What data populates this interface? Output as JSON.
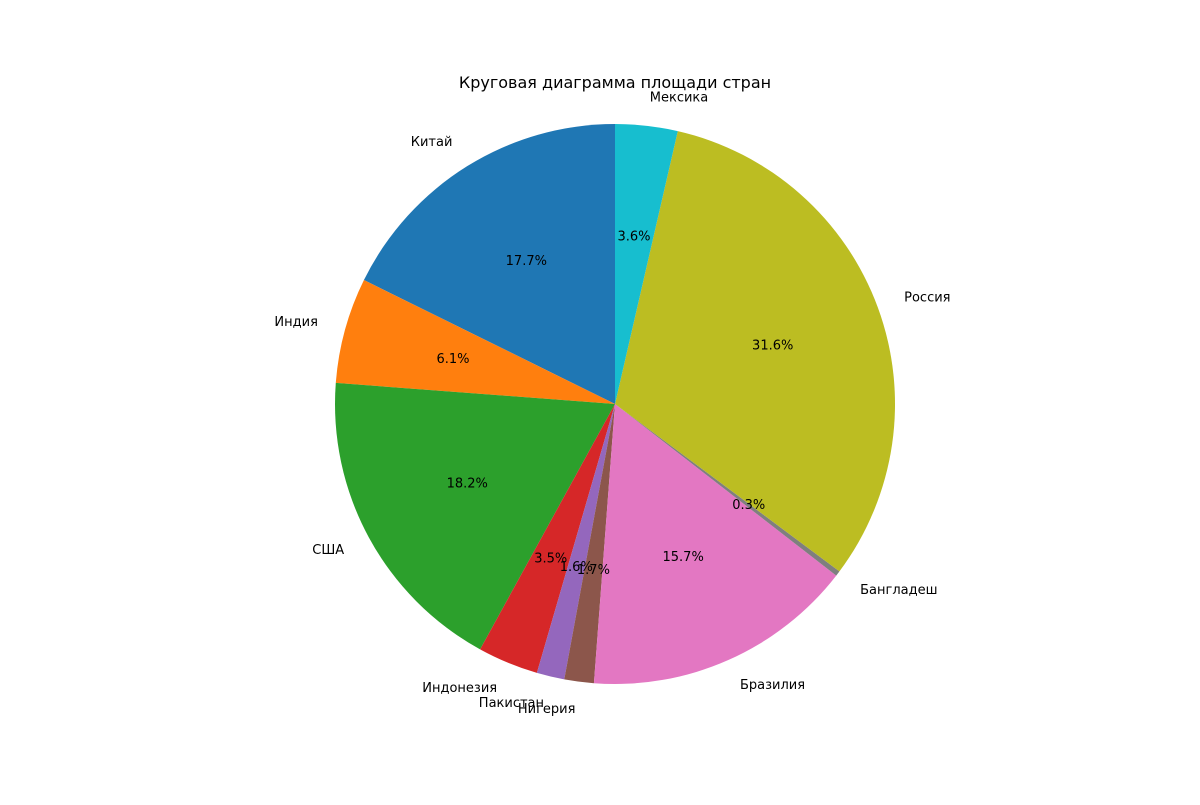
{
  "chart_data": {
    "type": "pie",
    "title": "Круговая диаграмма площади стран",
    "categories": [
      "Китай",
      "Индия",
      "США",
      "Индонезия",
      "Пакистан",
      "Нигерия",
      "Бразилия",
      "Бангладеш",
      "Россия",
      "Мексика"
    ],
    "values": [
      17.7,
      6.1,
      18.2,
      3.5,
      1.6,
      1.7,
      15.7,
      0.3,
      31.6,
      3.6
    ],
    "percent_labels": [
      "17.7%",
      "6.1%",
      "18.2%",
      "3.5%",
      "1.6%",
      "1.7%",
      "15.7%",
      "0.3%",
      "31.6%",
      "3.6%"
    ],
    "colors": [
      "#1f77b4",
      "#ff7f0e",
      "#2ca02c",
      "#d62728",
      "#9467bd",
      "#8c564b",
      "#e377c2",
      "#7f7f7f",
      "#bcbd22",
      "#17becf"
    ],
    "start_angle_deg": 90,
    "direction": "counterclockwise",
    "legend": "none"
  }
}
